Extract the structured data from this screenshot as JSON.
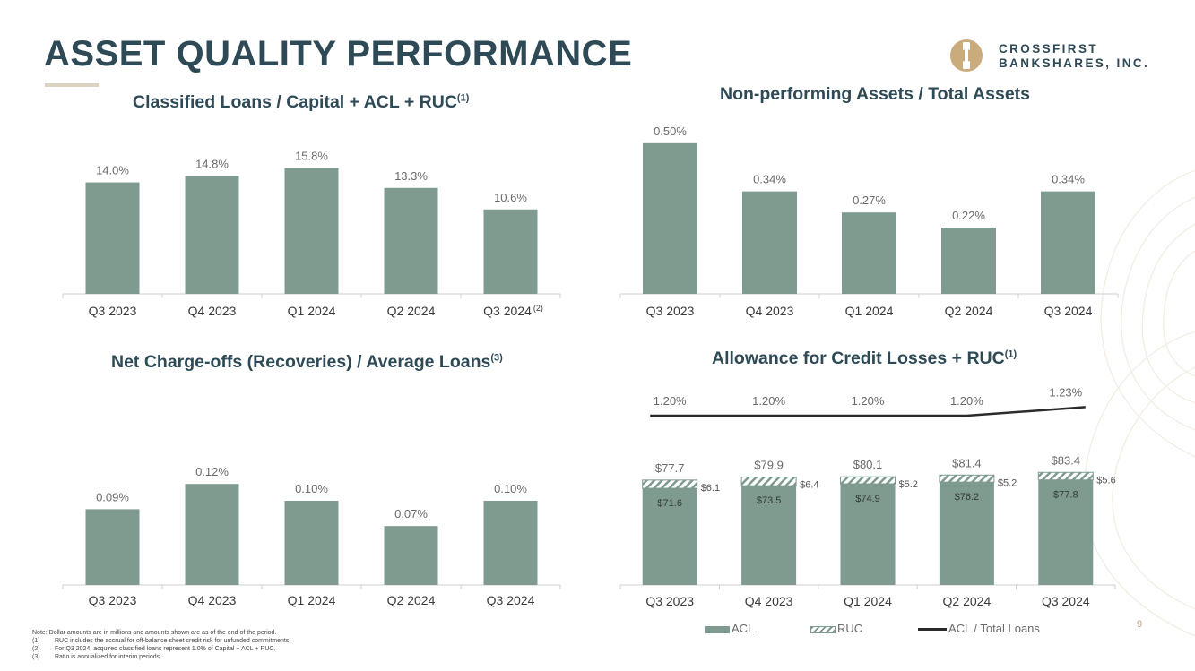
{
  "header": {
    "title": "ASSET QUALITY PERFORMANCE",
    "logo_line1": "CROSSFIRST",
    "logo_line2": "BANKSHARES, INC."
  },
  "colors": {
    "bar": "#7f9a8f",
    "title": "#2e4a56",
    "accent": "#ddd3c3",
    "line": "#2b2b2b"
  },
  "chart_data": [
    {
      "id": "classified",
      "type": "bar",
      "title": "Classified Loans / Capital + ACL + RUC",
      "title_sup": "(1)",
      "categories": [
        "Q3 2023",
        "Q4 2023",
        "Q1 2024",
        "Q2 2024",
        "Q3 2024"
      ],
      "category_footnotes": [
        "",
        "",
        "",
        "",
        "(2)"
      ],
      "values": [
        14.0,
        14.8,
        15.8,
        13.3,
        10.6
      ],
      "labels": [
        "14.0%",
        "14.8%",
        "15.8%",
        "13.3%",
        "10.6%"
      ],
      "ylim": [
        0,
        18
      ]
    },
    {
      "id": "npa",
      "type": "bar",
      "title": "Non-performing Assets / Total Assets",
      "title_sup": "",
      "categories": [
        "Q3 2023",
        "Q4 2023",
        "Q1 2024",
        "Q2 2024",
        "Q3 2024"
      ],
      "values": [
        0.5,
        0.34,
        0.27,
        0.22,
        0.34
      ],
      "labels": [
        "0.50%",
        "0.34%",
        "0.27%",
        "0.22%",
        "0.34%"
      ],
      "ylim": [
        0,
        0.55
      ]
    },
    {
      "id": "nco",
      "type": "bar",
      "title": "Net Charge-offs (Recoveries) / Average Loans",
      "title_sup": "(3)",
      "categories": [
        "Q3 2023",
        "Q4 2023",
        "Q1 2024",
        "Q2 2024",
        "Q3 2024"
      ],
      "values": [
        0.09,
        0.12,
        0.1,
        0.07,
        0.1
      ],
      "labels": [
        "0.09%",
        "0.12%",
        "0.10%",
        "0.07%",
        "0.10%"
      ],
      "ylim": [
        0,
        0.2
      ]
    },
    {
      "id": "acl",
      "type": "bar",
      "stacked": true,
      "title": "Allowance for Credit Losses + RUC",
      "title_sup": "(1)",
      "categories": [
        "Q3 2023",
        "Q4 2023",
        "Q1 2024",
        "Q2 2024",
        "Q3 2024"
      ],
      "series": [
        {
          "name": "ACL",
          "values": [
            71.6,
            73.5,
            74.9,
            76.2,
            77.8
          ],
          "labels": [
            "$71.6",
            "$73.5",
            "$74.9",
            "$76.2",
            "$77.8"
          ]
        },
        {
          "name": "RUC",
          "values": [
            6.1,
            6.4,
            5.2,
            5.2,
            5.6
          ],
          "labels": [
            "$6.1",
            "$6.4",
            "$5.2",
            "$5.2",
            "$5.6"
          ]
        }
      ],
      "totals": [
        77.7,
        79.9,
        80.1,
        81.4,
        83.4
      ],
      "total_labels": [
        "$77.7",
        "$79.9",
        "$80.1",
        "$81.4",
        "$83.4"
      ],
      "line": {
        "name": "ACL / Total Loans",
        "values": [
          1.2,
          1.2,
          1.2,
          1.2,
          1.23
        ],
        "labels": [
          "1.20%",
          "1.20%",
          "1.20%",
          "1.20%",
          "1.23%"
        ]
      },
      "ylim": [
        0,
        130
      ],
      "legend": [
        "ACL",
        "RUC",
        "ACL / Total Loans"
      ]
    }
  ],
  "notes": {
    "main": "Note: Dollar amounts are in millions and amounts shown are as of the end of the period.",
    "items": [
      {
        "num": "(1)",
        "text": "RUC includes the accrual for off-balance sheet credit risk for unfunded commitments."
      },
      {
        "num": "(2)",
        "text": "For Q3 2024, acquired classified loans represent 1.0% of Capital + ACL + RUC."
      },
      {
        "num": "(3)",
        "text": "Ratio is annualized for interim periods."
      }
    ]
  },
  "page_number": "9"
}
